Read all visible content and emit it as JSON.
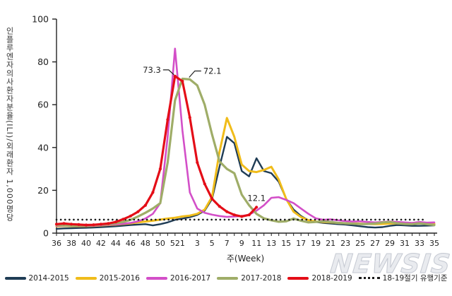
{
  "watermark": "NEWSIS",
  "chart_data": {
    "type": "line",
    "title": "",
    "xlabel": "주(Week)",
    "ylabel": "인플루엔자의사환자분율(ILI)/외래환자 1,000명당",
    "ylim": [
      0,
      100
    ],
    "yticks": [
      0,
      20,
      40,
      60,
      80,
      100
    ],
    "grid": false,
    "legend_position": "bottom",
    "weeks": [
      36,
      37,
      38,
      39,
      40,
      41,
      42,
      43,
      44,
      45,
      46,
      47,
      48,
      49,
      50,
      51,
      52,
      1,
      2,
      3,
      4,
      5,
      6,
      7,
      8,
      9,
      10,
      11,
      12,
      13,
      14,
      15,
      16,
      17,
      18,
      19,
      20,
      21,
      22,
      23,
      24,
      25,
      26,
      27,
      28,
      29,
      30,
      31,
      32,
      33,
      34,
      35
    ],
    "series": [
      {
        "name": "2014-2015",
        "color": "#1f3c55",
        "values": [
          2.0,
          2.2,
          2.3,
          2.4,
          2.5,
          2.6,
          2.8,
          3.0,
          3.2,
          3.5,
          3.8,
          4.0,
          4.2,
          3.6,
          4.2,
          5.0,
          6.2,
          6.8,
          7.5,
          8.5,
          10.5,
          16,
          31,
          45,
          42,
          29,
          26.5,
          35,
          29,
          28,
          24,
          16,
          11,
          8,
          6,
          5.2,
          4.8,
          4.5,
          4.2,
          4.0,
          3.6,
          3.2,
          2.8,
          2.6,
          2.8,
          3.4,
          3.8,
          3.6,
          3.4,
          3.4,
          3.5,
          3.6
        ]
      },
      {
        "name": "2015-2016",
        "color": "#f0bc1a",
        "values": [
          3.2,
          3.4,
          3.3,
          3.2,
          3.3,
          3.4,
          3.6,
          3.8,
          4.0,
          4.3,
          4.6,
          5.0,
          5.4,
          5.8,
          6.3,
          6.8,
          7.2,
          7.8,
          8.2,
          9.0,
          11,
          17,
          38,
          53.8,
          45,
          32,
          29,
          28.5,
          29.5,
          31,
          25,
          16,
          10,
          7.5,
          6.0,
          5.4,
          5.2,
          5.0,
          4.8,
          4.6,
          4.5,
          4.4,
          4.3,
          4.2,
          4.3,
          4.5,
          4.6,
          4.5,
          4.4,
          4.5,
          4.6,
          4.4
        ]
      },
      {
        "name": "2016-2017",
        "color": "#d34fc8",
        "values": [
          3.4,
          3.5,
          3.4,
          3.3,
          3.4,
          3.5,
          3.7,
          3.9,
          4.1,
          4.4,
          4.8,
          5.5,
          6.8,
          9.0,
          14,
          45,
          86.2,
          48,
          19,
          11.5,
          9.5,
          8.6,
          8.0,
          7.6,
          7.8,
          8.0,
          8.6,
          10.5,
          13,
          16.5,
          16.8,
          15.5,
          14,
          11.5,
          9.0,
          6.9,
          6.2,
          6.4,
          6.0,
          5.6,
          5.4,
          5.5,
          5.2,
          5.0,
          5.2,
          5.4,
          5.2,
          5.0,
          4.8,
          5.2,
          4.9,
          5.0
        ]
      },
      {
        "name": "2017-2018",
        "color": "#9fad68",
        "values": [
          3.8,
          3.6,
          3.5,
          3.5,
          3.6,
          3.8,
          4.0,
          4.2,
          4.6,
          5.2,
          6.2,
          7.8,
          9.5,
          11.5,
          14,
          33,
          62,
          72.1,
          71.8,
          69,
          60,
          46,
          33.5,
          30,
          28,
          18,
          13,
          9.0,
          6.9,
          6.0,
          5.3,
          5.5,
          6.8,
          5.8,
          5.0,
          5.2,
          5.5,
          5.2,
          4.8,
          4.6,
          4.4,
          4.2,
          4.3,
          4.5,
          5.0,
          5.2,
          4.6,
          4.3,
          4.2,
          4.6,
          4.2,
          3.8
        ]
      },
      {
        "name": "2018-2019",
        "color": "#e40d17",
        "markers": true,
        "values": [
          4.2,
          4.5,
          4.2,
          4.0,
          3.8,
          3.9,
          4.2,
          4.5,
          5.2,
          6.5,
          8.0,
          10.0,
          13.0,
          19.0,
          30.0,
          53.0,
          73.3,
          71,
          54,
          33,
          23,
          16,
          12.5,
          10,
          8.5,
          7.8,
          8.5,
          12.1,
          null,
          null,
          null,
          null,
          null,
          null,
          null,
          null,
          null,
          null,
          null,
          null,
          null,
          null,
          null,
          null,
          null,
          null,
          null,
          null,
          null,
          null,
          null,
          null
        ]
      }
    ],
    "threshold": {
      "label": "18-19절기 유행기준",
      "value": 6.3,
      "color": "#1a1a1a",
      "style": "dotted"
    },
    "annotations": [
      {
        "text": "73.3",
        "series": "2018-2019",
        "week": 52,
        "placement": "left"
      },
      {
        "text": "72.1",
        "series": "2017-2018",
        "week": 1,
        "placement": "right"
      },
      {
        "text": "12.1",
        "series": "2018-2019",
        "week": 11,
        "placement": "above"
      }
    ]
  }
}
